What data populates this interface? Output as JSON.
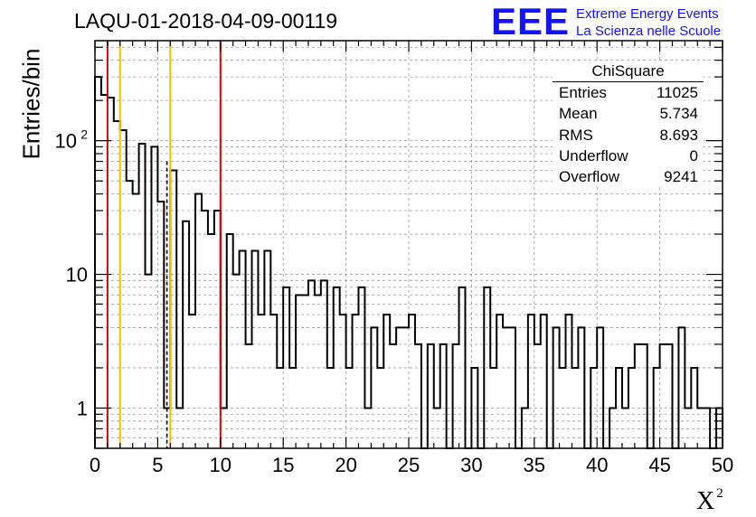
{
  "chart_data": {
    "type": "histogram",
    "title": "LAQU-01-2018-04-09-00119",
    "xlabel": "X",
    "xlabel_superscript": "2",
    "ylabel": "Entries/bin",
    "xlim": [
      0,
      50
    ],
    "ylim": [
      0.5,
      560
    ],
    "yscale": "log",
    "grid": true,
    "bin_width": 0.5,
    "x_ticks": [
      "0",
      "5",
      "10",
      "15",
      "20",
      "25",
      "30",
      "35",
      "40",
      "45",
      "50"
    ],
    "y_ticks": [
      {
        "value": 1,
        "label": "1"
      },
      {
        "value": 10,
        "label": "10"
      },
      {
        "value": 100,
        "label": "10",
        "exponent": "2"
      }
    ],
    "bin_contents": [
      300,
      220,
      210,
      140,
      120,
      50,
      40,
      95,
      10,
      90,
      35,
      1,
      60,
      1,
      25,
      5,
      40,
      30,
      20,
      30,
      1,
      20,
      10,
      15,
      3,
      15,
      5,
      15,
      5,
      2,
      8,
      2,
      7,
      7,
      9,
      7,
      9,
      2,
      8,
      5,
      2,
      5,
      8,
      1,
      4,
      2,
      5,
      3,
      4,
      4,
      5,
      3,
      0,
      3,
      1,
      3,
      0,
      3,
      8,
      0,
      2,
      0,
      8,
      2,
      5,
      4,
      4,
      0,
      1,
      5,
      3,
      5,
      0,
      4,
      2,
      5,
      2,
      4,
      0,
      2,
      4,
      0,
      1,
      2,
      1,
      2,
      3,
      3,
      0,
      2,
      3,
      3,
      0,
      4,
      1,
      2,
      1,
      1,
      0,
      1
    ],
    "vertical_lines": [
      {
        "x": 1,
        "color": "#dd0000",
        "style": "solid"
      },
      {
        "x": 2,
        "color": "#f0c000",
        "style": "solid"
      },
      {
        "x": 5.734,
        "color": "#000000",
        "style": "dashed"
      },
      {
        "x": 6,
        "color": "#f0c000",
        "style": "solid"
      },
      {
        "x": 10,
        "color": "#dd0000",
        "style": "solid"
      }
    ],
    "stats_box": {
      "title": "ChiSquare",
      "rows": [
        {
          "label": "Entries",
          "value": "11025"
        },
        {
          "label": "Mean",
          "value": "5.734"
        },
        {
          "label": "RMS",
          "value": "8.693"
        },
        {
          "label": "Underflow",
          "value": "0"
        },
        {
          "label": "Overflow",
          "value": "9241"
        }
      ]
    }
  },
  "logo": {
    "mark": "EEE",
    "line1": "Extreme Energy Events",
    "line2": "La Scienza nelle Scuole",
    "color": "#1212ff"
  },
  "colors": {
    "red_line": "#dd0000",
    "yellow_line": "#f0c000",
    "grid": "#9a9a9a",
    "histogram": "#000000"
  }
}
